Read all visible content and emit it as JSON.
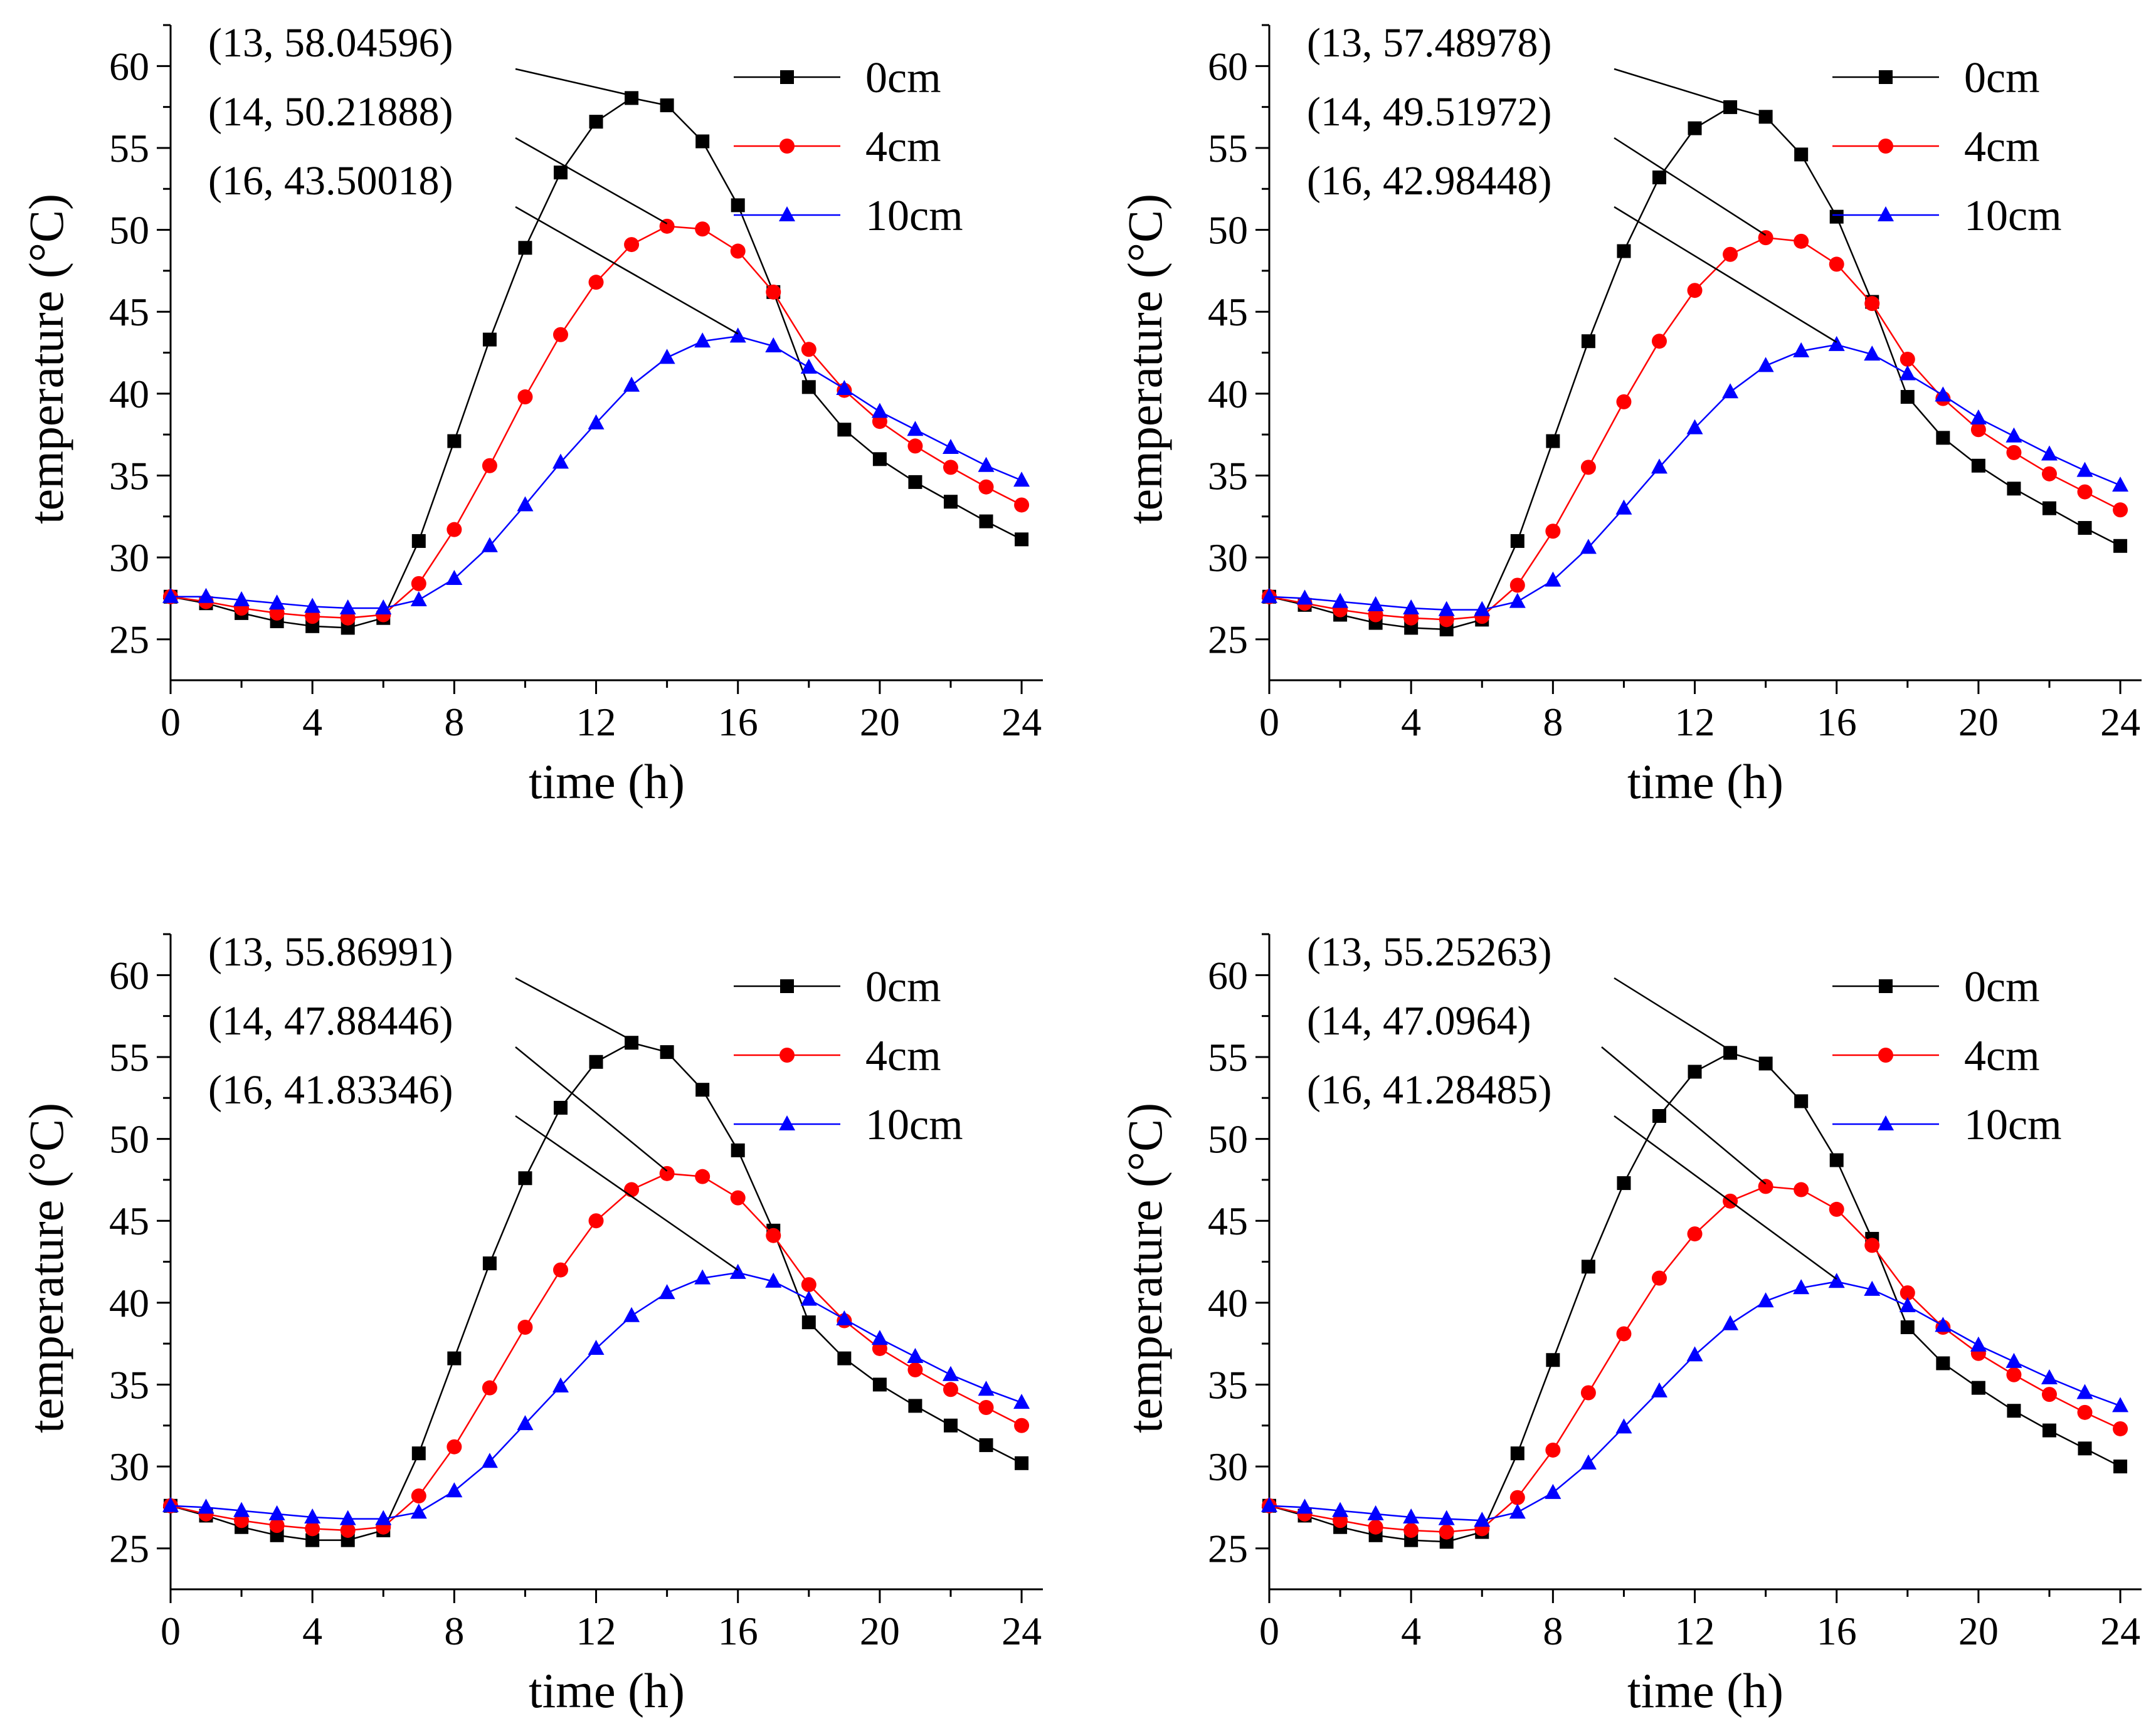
{
  "figure": {
    "panel_count": 4
  },
  "series_style": [
    {
      "name": "0cm",
      "color": "#000000",
      "marker": "square"
    },
    {
      "name": "4cm",
      "color": "#ff0000",
      "marker": "circle"
    },
    {
      "name": "10cm",
      "color": "#0000ff",
      "marker": "triangle"
    }
  ],
  "chart_data": [
    {
      "type": "line",
      "panel": "top-left",
      "title": "",
      "xlabel": "time (h)",
      "ylabel": "temperature (°C)",
      "xlim": [
        0,
        24.6
      ],
      "ylim": [
        22.5,
        62.5
      ],
      "xticks": [
        0,
        4,
        8,
        12,
        16,
        20,
        24
      ],
      "yticks": [
        25,
        30,
        35,
        40,
        45,
        50,
        55,
        60
      ],
      "grid": false,
      "legend": "top-right",
      "x": [
        0,
        1,
        2,
        3,
        4,
        5,
        6,
        7,
        8,
        9,
        10,
        11,
        12,
        13,
        14,
        15,
        16,
        17,
        18,
        19,
        20,
        21,
        22,
        23,
        24
      ],
      "series": [
        {
          "name": "0cm",
          "values": [
            27.6,
            27.2,
            26.6,
            26.1,
            25.8,
            25.7,
            26.3,
            31.0,
            37.1,
            43.3,
            48.9,
            53.5,
            56.6,
            58.04596,
            57.6,
            55.4,
            51.5,
            46.2,
            40.4,
            37.8,
            36.0,
            34.6,
            33.4,
            32.2,
            31.1
          ]
        },
        {
          "name": "4cm",
          "values": [
            27.6,
            27.3,
            26.9,
            26.6,
            26.4,
            26.3,
            26.5,
            28.4,
            31.7,
            35.6,
            39.8,
            43.6,
            46.8,
            49.1,
            50.21888,
            50.05,
            48.7,
            46.2,
            42.7,
            40.2,
            38.3,
            36.8,
            35.5,
            34.3,
            33.2
          ]
        },
        {
          "name": "10cm",
          "values": [
            27.6,
            27.6,
            27.4,
            27.2,
            27.0,
            26.9,
            26.9,
            27.4,
            28.7,
            30.7,
            33.2,
            35.8,
            38.2,
            40.5,
            42.2,
            43.2,
            43.50018,
            42.9,
            41.6,
            40.3,
            38.9,
            37.8,
            36.7,
            35.6,
            34.7
          ]
        }
      ],
      "annotations": [
        {
          "text": "(13, 58.04596)",
          "x": 13,
          "y": 58.04596,
          "series": "0cm"
        },
        {
          "text": "(14, 50.21888)",
          "x": 14,
          "y": 50.21888,
          "series": "4cm"
        },
        {
          "text": "(16, 43.50018)",
          "x": 16,
          "y": 43.50018,
          "series": "10cm"
        }
      ]
    },
    {
      "type": "line",
      "panel": "top-right",
      "title": "",
      "xlabel": "time (h)",
      "ylabel": "temperature (°C)",
      "xlim": [
        0,
        24.6
      ],
      "ylim": [
        22.5,
        62.5
      ],
      "xticks": [
        0,
        4,
        8,
        12,
        16,
        20,
        24
      ],
      "yticks": [
        25,
        30,
        35,
        40,
        45,
        50,
        55,
        60
      ],
      "grid": false,
      "legend": "top-right",
      "x": [
        0,
        1,
        2,
        3,
        4,
        5,
        6,
        7,
        8,
        9,
        10,
        11,
        12,
        13,
        14,
        15,
        16,
        17,
        18,
        19,
        20,
        21,
        22,
        23,
        24
      ],
      "series": [
        {
          "name": "0cm",
          "values": [
            27.6,
            27.1,
            26.5,
            26.0,
            25.7,
            25.6,
            26.2,
            31.0,
            37.1,
            43.2,
            48.7,
            53.2,
            56.2,
            57.48978,
            56.9,
            54.6,
            50.8,
            45.6,
            39.8,
            37.3,
            35.6,
            34.2,
            33.0,
            31.8,
            30.7
          ]
        },
        {
          "name": "4cm",
          "values": [
            27.6,
            27.2,
            26.8,
            26.5,
            26.3,
            26.2,
            26.4,
            28.3,
            31.6,
            35.5,
            39.5,
            43.2,
            46.3,
            48.5,
            49.51972,
            49.3,
            47.9,
            45.5,
            42.1,
            39.7,
            37.8,
            36.4,
            35.1,
            34.0,
            32.9
          ]
        },
        {
          "name": "10cm",
          "values": [
            27.6,
            27.5,
            27.3,
            27.1,
            26.9,
            26.8,
            26.8,
            27.3,
            28.6,
            30.6,
            33.0,
            35.5,
            37.9,
            40.1,
            41.7,
            42.6,
            42.98448,
            42.4,
            41.2,
            39.9,
            38.5,
            37.4,
            36.3,
            35.3,
            34.4
          ]
        }
      ],
      "annotations": [
        {
          "text": "(13, 57.48978)",
          "x": 13,
          "y": 57.48978,
          "series": "0cm"
        },
        {
          "text": "(14, 49.51972)",
          "x": 14,
          "y": 49.51972,
          "series": "4cm"
        },
        {
          "text": "(16, 42.98448)",
          "x": 16,
          "y": 42.98448,
          "series": "10cm"
        }
      ]
    },
    {
      "type": "line",
      "panel": "bottom-left",
      "title": "",
      "xlabel": "time (h)",
      "ylabel": "temperature (°C)",
      "xlim": [
        0,
        24.6
      ],
      "ylim": [
        22.5,
        62.5
      ],
      "xticks": [
        0,
        4,
        8,
        12,
        16,
        20,
        24
      ],
      "yticks": [
        25,
        30,
        35,
        40,
        45,
        50,
        55,
        60
      ],
      "grid": false,
      "legend": "top-right",
      "x": [
        0,
        1,
        2,
        3,
        4,
        5,
        6,
        7,
        8,
        9,
        10,
        11,
        12,
        13,
        14,
        15,
        16,
        17,
        18,
        19,
        20,
        21,
        22,
        23,
        24
      ],
      "series": [
        {
          "name": "0cm",
          "values": [
            27.6,
            27.0,
            26.3,
            25.8,
            25.5,
            25.5,
            26.1,
            30.8,
            36.6,
            42.4,
            47.6,
            51.9,
            54.7,
            55.86991,
            55.3,
            53.0,
            49.3,
            44.4,
            38.8,
            36.6,
            35.0,
            33.7,
            32.5,
            31.3,
            30.2
          ]
        },
        {
          "name": "4cm",
          "values": [
            27.6,
            27.1,
            26.7,
            26.4,
            26.2,
            26.1,
            26.3,
            28.2,
            31.2,
            34.8,
            38.5,
            42.0,
            45.0,
            46.9,
            47.88446,
            47.7,
            46.4,
            44.1,
            41.1,
            38.9,
            37.2,
            35.9,
            34.7,
            33.6,
            32.5
          ]
        },
        {
          "name": "10cm",
          "values": [
            27.6,
            27.5,
            27.3,
            27.1,
            26.9,
            26.8,
            26.8,
            27.2,
            28.5,
            30.3,
            32.6,
            34.9,
            37.2,
            39.2,
            40.6,
            41.5,
            41.83346,
            41.3,
            40.2,
            39.0,
            37.8,
            36.7,
            35.6,
            34.7,
            33.9
          ]
        }
      ],
      "annotations": [
        {
          "text": "(13, 55.86991)",
          "x": 13,
          "y": 55.86991,
          "series": "0cm"
        },
        {
          "text": "(14, 47.88446)",
          "x": 14,
          "y": 47.88446,
          "series": "4cm"
        },
        {
          "text": "(16, 41.83346)",
          "x": 16,
          "y": 41.83346,
          "series": "10cm"
        }
      ]
    },
    {
      "type": "line",
      "panel": "bottom-right",
      "title": "",
      "xlabel": "time (h)",
      "ylabel": "temperature (°C)",
      "xlim": [
        0,
        24.6
      ],
      "ylim": [
        22.5,
        62.5
      ],
      "xticks": [
        0,
        4,
        8,
        12,
        16,
        20,
        24
      ],
      "yticks": [
        25,
        30,
        35,
        40,
        45,
        50,
        55,
        60
      ],
      "grid": false,
      "legend": "top-right",
      "x": [
        0,
        1,
        2,
        3,
        4,
        5,
        6,
        7,
        8,
        9,
        10,
        11,
        12,
        13,
        14,
        15,
        16,
        17,
        18,
        19,
        20,
        21,
        22,
        23,
        24
      ],
      "series": [
        {
          "name": "0cm",
          "values": [
            27.6,
            27.0,
            26.3,
            25.8,
            25.5,
            25.4,
            26.0,
            30.8,
            36.5,
            42.2,
            47.3,
            51.4,
            54.1,
            55.25263,
            54.6,
            52.3,
            48.7,
            43.9,
            38.5,
            36.3,
            34.8,
            33.4,
            32.2,
            31.1,
            30.0
          ]
        },
        {
          "name": "4cm",
          "values": [
            27.6,
            27.1,
            26.7,
            26.3,
            26.1,
            26.0,
            26.2,
            28.1,
            31.0,
            34.5,
            38.1,
            41.5,
            44.2,
            46.2,
            47.0964,
            46.9,
            45.7,
            43.5,
            40.6,
            38.5,
            36.9,
            35.6,
            34.4,
            33.3,
            32.3
          ]
        },
        {
          "name": "10cm",
          "values": [
            27.6,
            27.5,
            27.3,
            27.1,
            26.9,
            26.8,
            26.7,
            27.2,
            28.4,
            30.2,
            32.4,
            34.6,
            36.8,
            38.7,
            40.1,
            40.9,
            41.28485,
            40.8,
            39.8,
            38.6,
            37.4,
            36.4,
            35.4,
            34.5,
            33.7
          ]
        }
      ],
      "annotations": [
        {
          "text": "(13, 55.25263)",
          "x": 13,
          "y": 55.25263,
          "series": "0cm"
        },
        {
          "text": "(14, 47.0964)",
          "x": 14,
          "y": 47.0964,
          "series": "4cm"
        },
        {
          "text": "(16, 41.28485)",
          "x": 16,
          "y": 41.28485,
          "series": "10cm"
        }
      ]
    }
  ]
}
